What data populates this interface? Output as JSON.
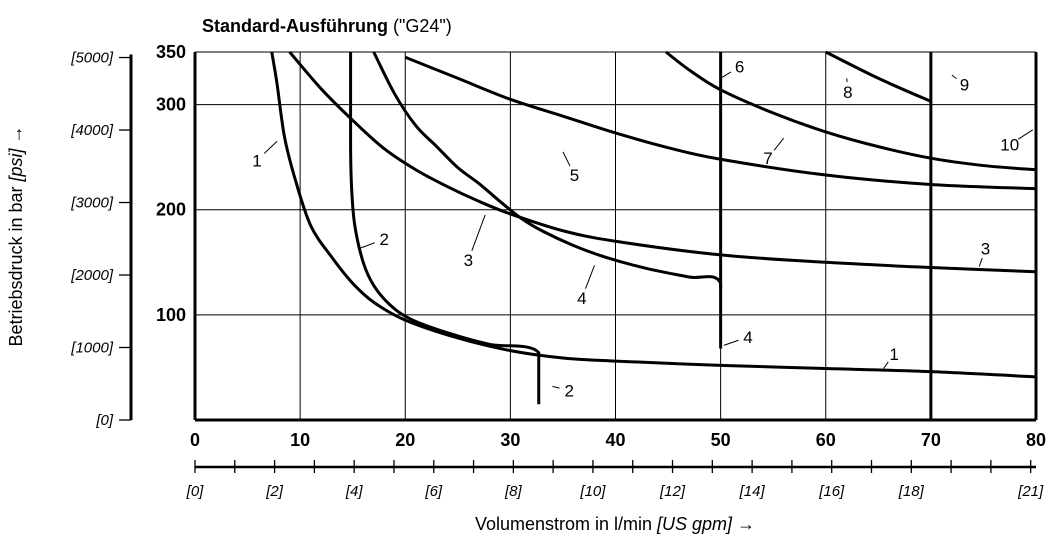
{
  "title": {
    "bold": "Standard-Ausführung",
    "rest": " (\"G24\")"
  },
  "chart_data": {
    "type": "line",
    "title": "Standard-Ausführung (\"G24\")",
    "xlabel": "Volumenstrom in l/min",
    "xlabel_unit": "[US gpm]",
    "xlabel_arrow": "→",
    "ylabel": "Betriebsdruck in bar",
    "ylabel_unit": "[psi]",
    "ylabel_arrow": "→",
    "xlim": [
      0,
      80
    ],
    "ylim": [
      0,
      350
    ],
    "grid": true,
    "x_ticks": [
      0,
      10,
      20,
      30,
      40,
      50,
      60,
      70,
      80
    ],
    "x_tick_labels": [
      "0",
      "10",
      "20",
      "30",
      "40",
      "50",
      "60",
      "70",
      "80"
    ],
    "y_ticks": [
      100,
      200,
      300,
      350
    ],
    "y_tick_labels": [
      "100",
      "200",
      "300",
      "350"
    ],
    "x2_ticks": [
      0,
      2,
      4,
      6,
      8,
      10,
      12,
      14,
      16,
      18,
      21
    ],
    "x2_tick_labels": [
      "[0]",
      "[2]",
      "[4]",
      "[6]",
      "[8]",
      "[10]",
      "[12]",
      "[14]",
      "[16]",
      "[18]",
      "[21]"
    ],
    "y2_ticks": [
      0,
      1000,
      2000,
      3000,
      4000,
      5000
    ],
    "y2_tick_labels": [
      "[0]",
      "[1000]",
      "[2000]",
      "[3000]",
      "[4000]",
      "[5000]"
    ],
    "series": [
      {
        "name": "1",
        "points": [
          [
            7.3,
            350
          ],
          [
            7.8,
            320
          ],
          [
            8.5,
            270
          ],
          [
            9.5,
            230
          ],
          [
            11,
            185
          ],
          [
            13,
            155
          ],
          [
            15,
            130
          ],
          [
            17,
            112
          ],
          [
            20,
            95
          ],
          [
            25,
            78
          ],
          [
            30,
            66
          ],
          [
            35,
            59
          ],
          [
            40,
            56
          ],
          [
            50,
            52
          ],
          [
            60,
            49
          ],
          [
            70,
            46
          ],
          [
            80,
            41
          ]
        ]
      },
      {
        "name": "2",
        "points": [
          [
            14.8,
            350
          ],
          [
            14.8,
            260
          ],
          [
            14.9,
            220
          ],
          [
            15.2,
            185
          ],
          [
            16,
            150
          ],
          [
            17,
            128
          ],
          [
            18.5,
            110
          ],
          [
            20.5,
            96
          ],
          [
            24,
            83
          ],
          [
            28,
            72
          ],
          [
            32.7,
            64
          ],
          [
            32.7,
            15
          ]
        ]
      },
      {
        "name": "3",
        "points": [
          [
            9,
            350
          ],
          [
            12,
            315
          ],
          [
            15,
            285
          ],
          [
            18,
            258
          ],
          [
            21,
            238
          ],
          [
            24,
            222
          ],
          [
            27,
            208
          ],
          [
            30,
            196
          ],
          [
            35,
            180
          ],
          [
            40,
            170
          ],
          [
            50,
            157
          ],
          [
            60,
            150
          ],
          [
            70,
            145
          ],
          [
            80,
            141
          ]
        ]
      },
      {
        "name": "4",
        "points": [
          [
            17,
            350
          ],
          [
            19,
            310
          ],
          [
            21,
            280
          ],
          [
            23,
            260
          ],
          [
            25,
            240
          ],
          [
            27,
            225
          ],
          [
            29,
            208
          ],
          [
            31,
            192
          ],
          [
            33,
            180
          ],
          [
            36,
            166
          ],
          [
            39,
            155
          ],
          [
            43,
            144
          ],
          [
            47,
            136
          ],
          [
            50,
            130
          ],
          [
            50,
            68
          ]
        ]
      },
      {
        "name": "5",
        "points": [
          [
            20,
            345
          ],
          [
            25,
            325
          ],
          [
            30,
            305
          ],
          [
            35,
            289
          ],
          [
            40,
            273
          ],
          [
            45,
            259
          ],
          [
            50,
            248
          ],
          [
            60,
            233
          ],
          [
            70,
            224
          ],
          [
            80,
            220
          ]
        ]
      },
      {
        "name": "6",
        "points": [
          [
            50,
            350
          ],
          [
            50,
            125
          ]
        ]
      },
      {
        "name": "7",
        "points": [
          [
            44.8,
            350
          ],
          [
            47,
            333
          ],
          [
            50,
            314
          ],
          [
            55,
            292
          ],
          [
            60,
            274
          ],
          [
            65,
            260
          ],
          [
            70,
            249
          ],
          [
            75,
            242
          ],
          [
            80,
            238
          ]
        ]
      },
      {
        "name": "8",
        "points": [
          [
            60,
            350
          ],
          [
            65,
            325
          ],
          [
            70,
            303
          ]
        ]
      },
      {
        "name": "9",
        "points": [
          [
            70,
            350
          ],
          [
            70,
            0
          ]
        ]
      },
      {
        "name": "10",
        "points": [
          [
            80,
            350
          ],
          [
            80,
            0
          ]
        ]
      }
    ],
    "annotations": [
      {
        "text": "1",
        "at": [
          5.9,
          247
        ],
        "leader_to": [
          7.8,
          265
        ]
      },
      {
        "text": "2",
        "at": [
          18,
          172
        ],
        "leader_to": [
          15.6,
          163
        ]
      },
      {
        "text": "3",
        "at": [
          26,
          152
        ],
        "leader_to": [
          27.6,
          195
        ]
      },
      {
        "text": "4",
        "at": [
          36.8,
          116
        ],
        "leader_to": [
          38,
          147
        ]
      },
      {
        "text": "5",
        "at": [
          36.1,
          233
        ],
        "leader_to": [
          35,
          255
        ]
      },
      {
        "text": "6",
        "at": [
          51.8,
          336
        ],
        "leader_to": [
          50,
          325
        ]
      },
      {
        "text": "7",
        "at": [
          54.5,
          249
        ],
        "leader_to": [
          56,
          268
        ]
      },
      {
        "text": "8",
        "at": [
          62.1,
          312
        ],
        "leader_to": [
          62,
          325
        ]
      },
      {
        "text": "9",
        "at": [
          73.2,
          319
        ],
        "leader_to": [
          72,
          328
        ]
      },
      {
        "text": "10",
        "at": [
          77.5,
          262
        ],
        "leader_to": [
          79.7,
          276
        ]
      },
      {
        "text": "3",
        "at": [
          75.2,
          163
        ],
        "leader_to": [
          74.6,
          146
        ]
      },
      {
        "text": "2",
        "at": [
          35.6,
          28
        ],
        "leader_to": [
          34,
          32
        ]
      },
      {
        "text": "4",
        "at": [
          52.6,
          79
        ],
        "leader_to": [
          50.3,
          71
        ]
      },
      {
        "text": "1",
        "at": [
          66.5,
          63
        ],
        "leader_to": [
          65.5,
          49
        ]
      }
    ]
  }
}
